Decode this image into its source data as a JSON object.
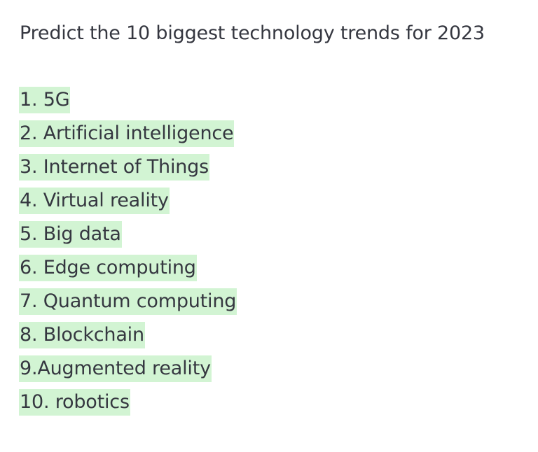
{
  "prompt": {
    "text": "Predict the 10 biggest technology trends for 2023"
  },
  "completion": {
    "highlight_color": "#d2f4d3",
    "items": [
      {
        "text": "1. 5G"
      },
      {
        "text": "2. Artificial intelligence"
      },
      {
        "text": "3. Internet of Things"
      },
      {
        "text": "4. Virtual reality"
      },
      {
        "text": "5. Big data"
      },
      {
        "text": "6. Edge computing"
      },
      {
        "text": "7. Quantum computing"
      },
      {
        "text": "8. Blockchain"
      },
      {
        "text": "9.Augmented reality"
      },
      {
        "text": "10. robotics"
      }
    ]
  }
}
